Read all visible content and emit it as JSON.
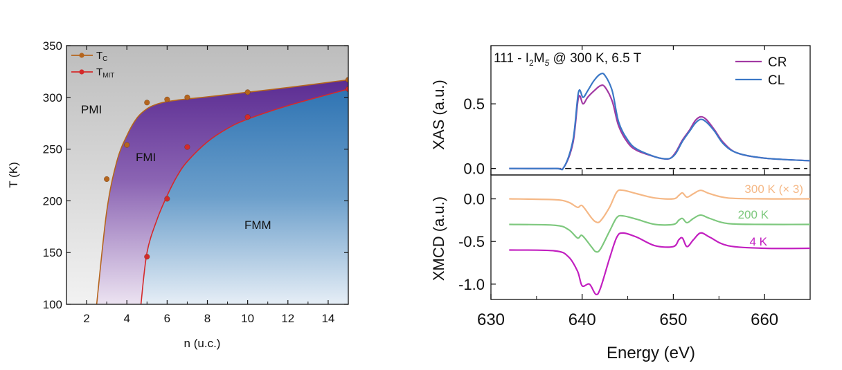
{
  "chart_data": [
    {
      "type": "area",
      "title": "",
      "xlabel": "n (u.c.)",
      "ylabel": "T (K)",
      "xlim": [
        1,
        15
      ],
      "ylim": [
        100,
        350
      ],
      "xticks": [
        "2",
        "4",
        "6",
        "8",
        "10",
        "12",
        "14"
      ],
      "yticks": [
        "100",
        "150",
        "200",
        "250",
        "300",
        "350"
      ],
      "legend": {
        "position": "top-left",
        "entries": [
          {
            "main": "T",
            "sub": "C"
          },
          {
            "main": "T",
            "sub": "MIT"
          }
        ]
      },
      "series": [
        {
          "name": "T_C",
          "color": "#b5651d",
          "points": [
            [
              3,
              221
            ],
            [
              4,
              254
            ],
            [
              5,
              295
            ],
            [
              6,
              298
            ],
            [
              7,
              300
            ],
            [
              10,
              305
            ],
            [
              15,
              317
            ]
          ],
          "fit": [
            [
              2.5,
              100
            ],
            [
              3.0,
              190
            ],
            [
              3.5,
              238
            ],
            [
              4.0,
              263
            ],
            [
              4.5,
              280
            ],
            [
              5.0,
              289
            ],
            [
              5.5,
              293.5
            ],
            [
              6.0,
              296
            ],
            [
              7.0,
              298.5
            ],
            [
              8.0,
              300.5
            ],
            [
              10.0,
              305
            ],
            [
              12.0,
              309.5
            ],
            [
              15.0,
              317
            ]
          ]
        },
        {
          "name": "T_MIT",
          "color": "#d42a2a",
          "points": [
            [
              5,
              146
            ],
            [
              6,
              202
            ],
            [
              7,
              252
            ],
            [
              10,
              281
            ],
            [
              15,
              308
            ]
          ],
          "fit": [
            [
              4.7,
              100
            ],
            [
              5.0,
              150
            ],
            [
              5.5,
              182
            ],
            [
              6.0,
              205
            ],
            [
              6.5,
              224
            ],
            [
              7.0,
              238
            ],
            [
              8.0,
              257
            ],
            [
              9.0,
              270
            ],
            [
              10.0,
              279
            ],
            [
              12.0,
              292
            ],
            [
              15.0,
              308
            ]
          ]
        }
      ],
      "regions": [
        "PMI",
        "FMI",
        "FMM"
      ],
      "colors": {
        "pmi": "#c6c6c6",
        "fmi": "#5a2f95",
        "fmm": "#3a7db8"
      }
    },
    {
      "type": "line",
      "panel": "XAS",
      "title": "",
      "annotation": {
        "pre": "111 - I",
        "s1": "2",
        "mid": "M",
        "s2": "5",
        "post": " @ 300 K, 6.5 T"
      },
      "xlabel": "Energy (eV)",
      "ylabel": "XAS (a.u.)",
      "xlim": [
        630,
        665
      ],
      "ylim": [
        -0.05,
        0.95
      ],
      "xticks": [
        "630",
        "640",
        "650",
        "660"
      ],
      "yticks": [
        "0.0",
        "0.5"
      ],
      "legend_position": "top-right",
      "series": [
        {
          "name": "CR",
          "color": "#a23aa3",
          "points": [
            [
              632,
              0
            ],
            [
              637,
              0
            ],
            [
              638,
              0.01
            ],
            [
              639,
              0.2
            ],
            [
              639.6,
              0.55
            ],
            [
              640.1,
              0.5
            ],
            [
              640.6,
              0.55
            ],
            [
              641.3,
              0.6
            ],
            [
              642,
              0.64
            ],
            [
              642.5,
              0.63
            ],
            [
              643.3,
              0.52
            ],
            [
              644,
              0.33
            ],
            [
              645,
              0.2
            ],
            [
              646,
              0.14
            ],
            [
              648,
              0.09
            ],
            [
              649,
              0.075
            ],
            [
              649.7,
              0.08
            ],
            [
              650.3,
              0.13
            ],
            [
              651,
              0.22
            ],
            [
              651.8,
              0.3
            ],
            [
              652.4,
              0.37
            ],
            [
              653,
              0.4
            ],
            [
              653.6,
              0.38
            ],
            [
              654.5,
              0.3
            ],
            [
              655.5,
              0.2
            ],
            [
              657,
              0.12
            ],
            [
              660,
              0.08
            ],
            [
              665,
              0.06
            ]
          ]
        },
        {
          "name": "CL",
          "color": "#3b78c6",
          "points": [
            [
              632,
              0
            ],
            [
              637,
              0
            ],
            [
              638,
              0.01
            ],
            [
              639,
              0.22
            ],
            [
              639.6,
              0.59
            ],
            [
              640.1,
              0.55
            ],
            [
              640.6,
              0.6
            ],
            [
              641.3,
              0.68
            ],
            [
              642,
              0.73
            ],
            [
              642.5,
              0.72
            ],
            [
              643.3,
              0.6
            ],
            [
              644,
              0.36
            ],
            [
              645,
              0.22
            ],
            [
              646,
              0.15
            ],
            [
              648,
              0.09
            ],
            [
              649,
              0.075
            ],
            [
              649.7,
              0.08
            ],
            [
              650.3,
              0.12
            ],
            [
              651,
              0.21
            ],
            [
              651.8,
              0.29
            ],
            [
              652.4,
              0.35
            ],
            [
              653,
              0.38
            ],
            [
              653.6,
              0.36
            ],
            [
              654.5,
              0.29
            ],
            [
              655.5,
              0.19
            ],
            [
              657,
              0.12
            ],
            [
              660,
              0.08
            ],
            [
              665,
              0.06
            ]
          ]
        }
      ],
      "baseline": 0
    },
    {
      "type": "line",
      "panel": "XMCD",
      "title": "",
      "xlabel": "Energy (eV)",
      "ylabel": "XMCD (a.u.)",
      "xlim": [
        630,
        665
      ],
      "ylim": [
        -1.18,
        0.28
      ],
      "xticks": [
        "630",
        "640",
        "650",
        "660"
      ],
      "yticks": [
        "0.0",
        "-0.5",
        "-1.0"
      ],
      "series": [
        {
          "name": "300 K (× 3)",
          "color": "#f5b886",
          "points": [
            [
              632,
              0
            ],
            [
              637,
              -0.01
            ],
            [
              638.5,
              -0.04
            ],
            [
              639.5,
              -0.1
            ],
            [
              640,
              -0.08
            ],
            [
              641,
              -0.22
            ],
            [
              641.5,
              -0.27
            ],
            [
              642,
              -0.26
            ],
            [
              643,
              -0.1
            ],
            [
              643.8,
              0.08
            ],
            [
              644.5,
              0.1
            ],
            [
              646,
              0.06
            ],
            [
              648,
              0.01
            ],
            [
              650,
              0
            ],
            [
              650.6,
              0.04
            ],
            [
              651,
              0.07
            ],
            [
              651.5,
              0.02
            ],
            [
              652.2,
              0.06
            ],
            [
              653,
              0.1
            ],
            [
              654,
              0.06
            ],
            [
              656,
              0.01
            ],
            [
              660,
              0
            ],
            [
              665,
              0
            ]
          ]
        },
        {
          "name": "200 K",
          "color": "#7ec87e",
          "points": [
            [
              632,
              -0.3
            ],
            [
              637,
              -0.31
            ],
            [
              638.5,
              -0.36
            ],
            [
              639.5,
              -0.46
            ],
            [
              640,
              -0.43
            ],
            [
              641,
              -0.56
            ],
            [
              641.5,
              -0.62
            ],
            [
              642,
              -0.59
            ],
            [
              643,
              -0.38
            ],
            [
              643.8,
              -0.22
            ],
            [
              644.5,
              -0.2
            ],
            [
              646,
              -0.24
            ],
            [
              648,
              -0.3
            ],
            [
              650,
              -0.3
            ],
            [
              650.6,
              -0.25
            ],
            [
              651,
              -0.23
            ],
            [
              651.5,
              -0.28
            ],
            [
              652.2,
              -0.23
            ],
            [
              653,
              -0.19
            ],
            [
              654,
              -0.23
            ],
            [
              656,
              -0.29
            ],
            [
              660,
              -0.3
            ],
            [
              665,
              -0.3
            ]
          ]
        },
        {
          "name": "4 K",
          "color": "#c21fc0",
          "points": [
            [
              632,
              -0.6
            ],
            [
              637,
              -0.61
            ],
            [
              638.5,
              -0.68
            ],
            [
              639.5,
              -0.85
            ],
            [
              640,
              -1.02
            ],
            [
              640.8,
              -1.0
            ],
            [
              641.5,
              -1.12
            ],
            [
              642,
              -1.05
            ],
            [
              643,
              -0.7
            ],
            [
              643.8,
              -0.45
            ],
            [
              644.5,
              -0.4
            ],
            [
              646,
              -0.45
            ],
            [
              648,
              -0.55
            ],
            [
              650,
              -0.56
            ],
            [
              650.6,
              -0.48
            ],
            [
              651,
              -0.46
            ],
            [
              651.5,
              -0.56
            ],
            [
              652.2,
              -0.48
            ],
            [
              653,
              -0.4
            ],
            [
              654,
              -0.45
            ],
            [
              656,
              -0.55
            ],
            [
              660,
              -0.58
            ],
            [
              665,
              -0.58
            ]
          ]
        }
      ]
    }
  ]
}
